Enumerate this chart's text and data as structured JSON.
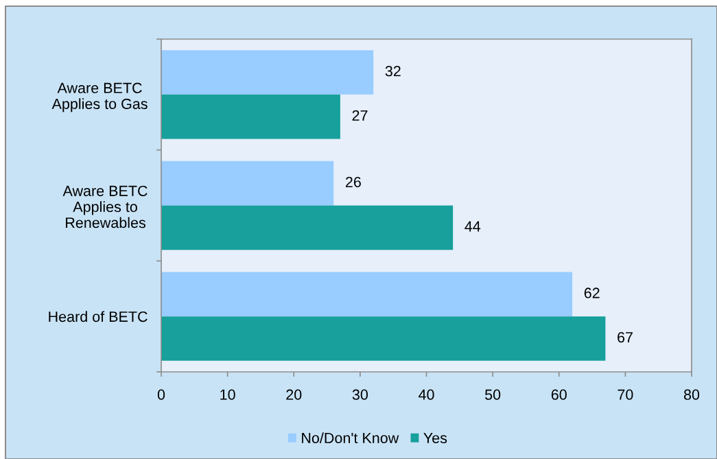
{
  "chart_data": {
    "type": "bar",
    "orientation": "horizontal",
    "categories": [
      "Aware BETC\nApplies to Gas",
      "Aware BETC\nApplies to\nRenewables",
      "Heard of BETC"
    ],
    "series": [
      {
        "name": "No/Don't Know",
        "color": "#99ccff",
        "values": [
          32,
          26,
          62
        ]
      },
      {
        "name": "Yes",
        "color": "#17a09c",
        "values": [
          27,
          44,
          67
        ]
      }
    ],
    "xlim": [
      0,
      80
    ],
    "xticks": [
      0,
      10,
      20,
      30,
      40,
      50,
      60,
      70,
      80
    ],
    "data_labels": true,
    "legend": "bottom"
  }
}
